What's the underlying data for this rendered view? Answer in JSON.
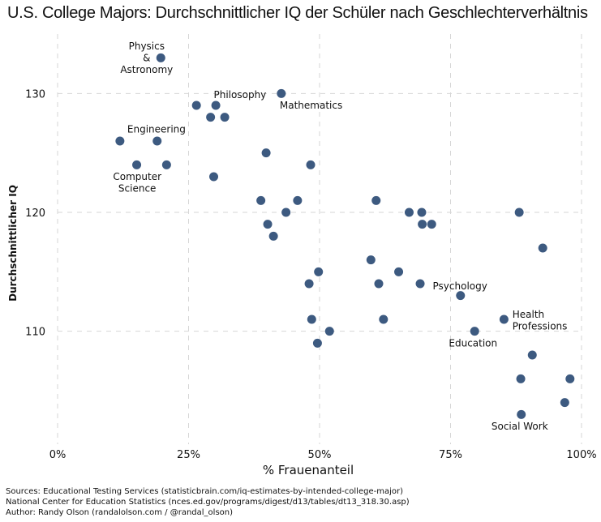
{
  "chart_data": {
    "type": "scatter",
    "title": "U.S. College Majors: Durchschnittlicher IQ der Schüler nach Geschlechterverhältnis",
    "xlabel": "% Frauenanteil",
    "ylabel": "Durchschnittlicher IQ",
    "xlim": [
      0,
      100
    ],
    "ylim": [
      100.5,
      135
    ],
    "xticks": [
      0,
      25,
      50,
      75,
      100
    ],
    "xtick_labels": [
      "0%",
      "25%",
      "50%",
      "75%",
      "100%"
    ],
    "yticks": [
      110,
      120,
      130
    ],
    "ytick_labels": [
      "110",
      "120",
      "130"
    ],
    "grid": true,
    "series": [
      {
        "name": "majors",
        "points": [
          {
            "x": 19.7,
            "y": 133
          },
          {
            "x": 42.7,
            "y": 130
          },
          {
            "x": 26.5,
            "y": 129
          },
          {
            "x": 30.2,
            "y": 129
          },
          {
            "x": 29.2,
            "y": 128
          },
          {
            "x": 31.9,
            "y": 128
          },
          {
            "x": 11.9,
            "y": 126
          },
          {
            "x": 19.0,
            "y": 126
          },
          {
            "x": 39.8,
            "y": 125
          },
          {
            "x": 15.1,
            "y": 124
          },
          {
            "x": 20.8,
            "y": 124
          },
          {
            "x": 48.3,
            "y": 124
          },
          {
            "x": 29.8,
            "y": 123
          },
          {
            "x": 38.8,
            "y": 121
          },
          {
            "x": 45.8,
            "y": 121
          },
          {
            "x": 60.8,
            "y": 121
          },
          {
            "x": 43.6,
            "y": 120
          },
          {
            "x": 67.1,
            "y": 120
          },
          {
            "x": 69.5,
            "y": 120
          },
          {
            "x": 88.1,
            "y": 120
          },
          {
            "x": 40.1,
            "y": 119
          },
          {
            "x": 69.6,
            "y": 119
          },
          {
            "x": 71.4,
            "y": 119
          },
          {
            "x": 41.2,
            "y": 118
          },
          {
            "x": 92.6,
            "y": 117
          },
          {
            "x": 59.8,
            "y": 116
          },
          {
            "x": 49.8,
            "y": 115
          },
          {
            "x": 65.1,
            "y": 115
          },
          {
            "x": 48.0,
            "y": 114
          },
          {
            "x": 61.3,
            "y": 114
          },
          {
            "x": 69.2,
            "y": 114
          },
          {
            "x": 76.9,
            "y": 113
          },
          {
            "x": 48.5,
            "y": 111
          },
          {
            "x": 62.2,
            "y": 111
          },
          {
            "x": 85.2,
            "y": 111
          },
          {
            "x": 51.9,
            "y": 110
          },
          {
            "x": 79.6,
            "y": 110
          },
          {
            "x": 49.6,
            "y": 109
          },
          {
            "x": 90.6,
            "y": 108
          },
          {
            "x": 88.4,
            "y": 106
          },
          {
            "x": 97.8,
            "y": 106
          },
          {
            "x": 96.8,
            "y": 104
          },
          {
            "x": 88.5,
            "y": 103
          }
        ]
      }
    ],
    "annotations": [
      {
        "lines": [
          "Physics",
          "&",
          "Astronomy"
        ],
        "x": 17.0,
        "y": 133.0,
        "anchor": "middle"
      },
      {
        "lines": [
          "Philosophy"
        ],
        "x": 29.8,
        "y": 129.9,
        "anchor": "start"
      },
      {
        "lines": [
          "Mathematics"
        ],
        "x": 42.4,
        "y": 129.0,
        "anchor": "start"
      },
      {
        "lines": [
          "Engineering"
        ],
        "x": 13.3,
        "y": 127.0,
        "anchor": "start"
      },
      {
        "lines": [
          "Computer",
          "Science"
        ],
        "x": 15.2,
        "y": 122.5,
        "anchor": "middle"
      },
      {
        "lines": [
          "Psychology"
        ],
        "x": 71.6,
        "y": 113.8,
        "anchor": "start"
      },
      {
        "lines": [
          "Health",
          "Professions"
        ],
        "x": 86.8,
        "y": 110.9,
        "anchor": "start"
      },
      {
        "lines": [
          "Education"
        ],
        "x": 79.3,
        "y": 109.0,
        "anchor": "middle"
      },
      {
        "lines": [
          "Social Work"
        ],
        "x": 88.2,
        "y": 102.0,
        "anchor": "middle"
      }
    ]
  },
  "source": {
    "line1": "Sources: Educational Testing Services (statisticbrain.com/iq-estimates-by-intended-college-major)",
    "line2": "National Center for Education Statistics (nces.ed.gov/programs/digest/d13/tables/dt13_318.30.asp)",
    "line3": "Author: Randy Olson (randalolson.com / @randal_olson)"
  },
  "colors": {
    "point": "#3d5a80",
    "grid": "#d6d6d6"
  }
}
